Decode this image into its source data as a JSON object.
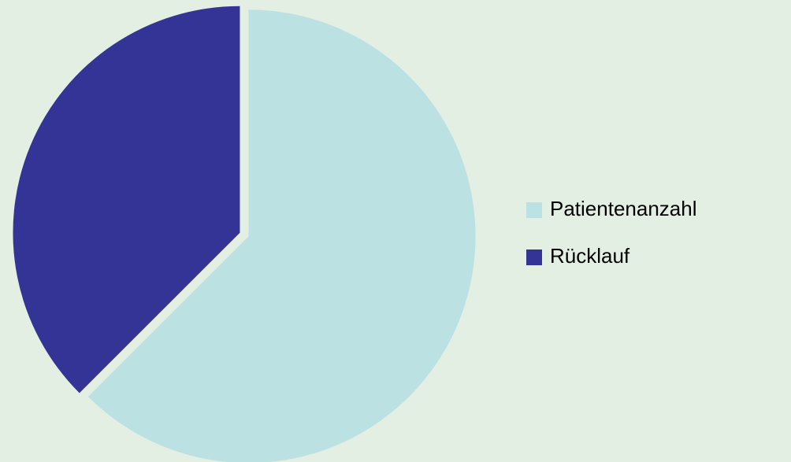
{
  "chart_data": {
    "type": "pie",
    "categories": [
      "Patientenanzahl",
      "Rücklauf"
    ],
    "values": [
      62.5,
      37.5
    ],
    "colors": [
      "#bce1e3",
      "#343496"
    ],
    "legend": "right"
  }
}
